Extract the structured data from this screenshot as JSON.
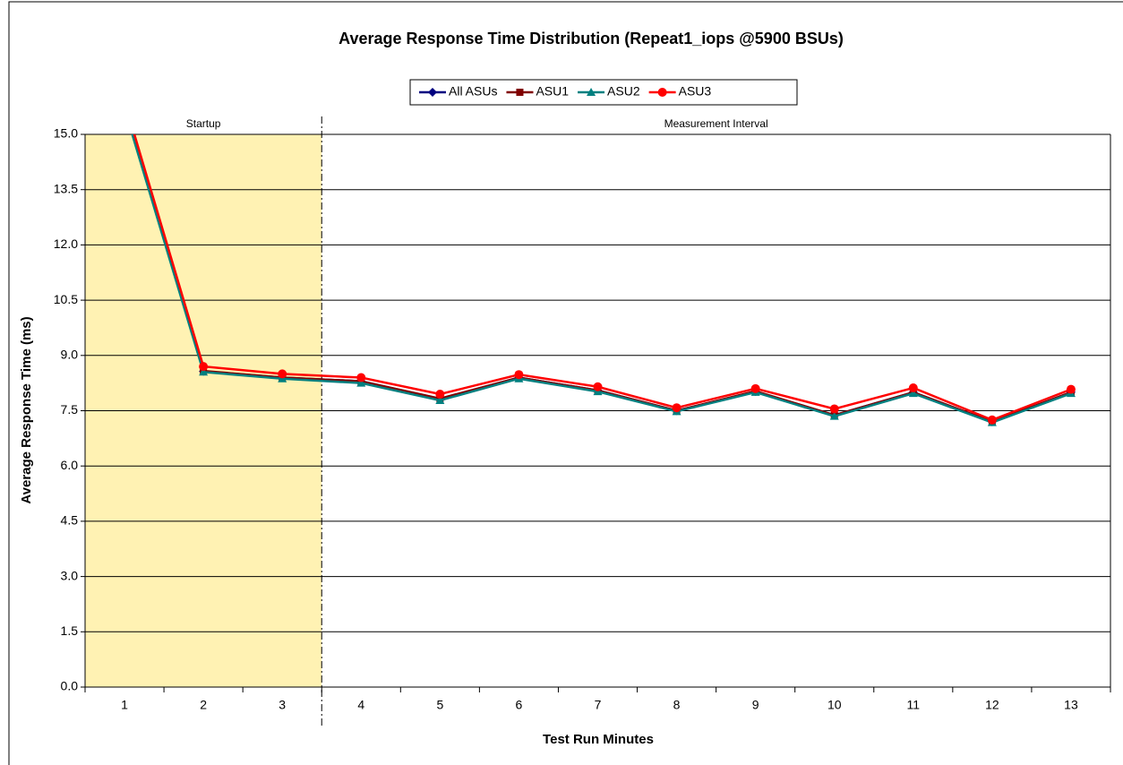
{
  "chart_data": {
    "type": "line",
    "title": "Average Response Time Distribution (Repeat1_iops @5900 BSUs)",
    "x_label": "Test Run Minutes",
    "y_label": "Average Response Time (ms)",
    "annotations": [
      "Startup",
      "Measurement Interval"
    ],
    "categories": [
      "1",
      "2",
      "3",
      "4",
      "5",
      "6",
      "7",
      "8",
      "9",
      "10",
      "11",
      "12",
      "13"
    ],
    "series": [
      {
        "name": "All ASUs",
        "color": "#000080",
        "marker": "diamond",
        "values": [
          15.8,
          8.57,
          8.4,
          8.3,
          7.82,
          8.4,
          8.05,
          7.5,
          8.02,
          7.38,
          8.0,
          7.2,
          8.0
        ]
      },
      {
        "name": "ASU1",
        "color": "#800000",
        "marker": "square",
        "values": [
          15.8,
          8.58,
          8.4,
          8.3,
          7.83,
          8.4,
          8.05,
          7.5,
          8.03,
          7.38,
          8.0,
          7.2,
          8.0
        ]
      },
      {
        "name": "ASU2",
        "color": "#008080",
        "marker": "triangle",
        "values": [
          15.7,
          8.55,
          8.37,
          8.25,
          7.78,
          8.37,
          8.02,
          7.48,
          8.0,
          7.35,
          7.97,
          7.18,
          7.97
        ]
      },
      {
        "name": "ASU3",
        "color": "#ff0000",
        "marker": "circle",
        "values": [
          15.9,
          8.7,
          8.5,
          8.4,
          7.95,
          8.48,
          8.15,
          7.58,
          8.1,
          7.55,
          8.12,
          7.25,
          8.08
        ]
      }
    ],
    "ylim": [
      0,
      15
    ],
    "yticks": [
      {
        "value": 0,
        "label": "0.0"
      },
      1.5,
      {
        "value": 3,
        "label": "3.0"
      },
      4.5,
      {
        "value": 6,
        "label": "6.0"
      },
      7.5,
      {
        "value": 9,
        "label": "9.0"
      },
      10.5,
      {
        "value": 12,
        "label": "12.0"
      },
      13.5,
      {
        "value": 15,
        "label": "15.0"
      }
    ],
    "grid": true,
    "legend": "top"
  }
}
